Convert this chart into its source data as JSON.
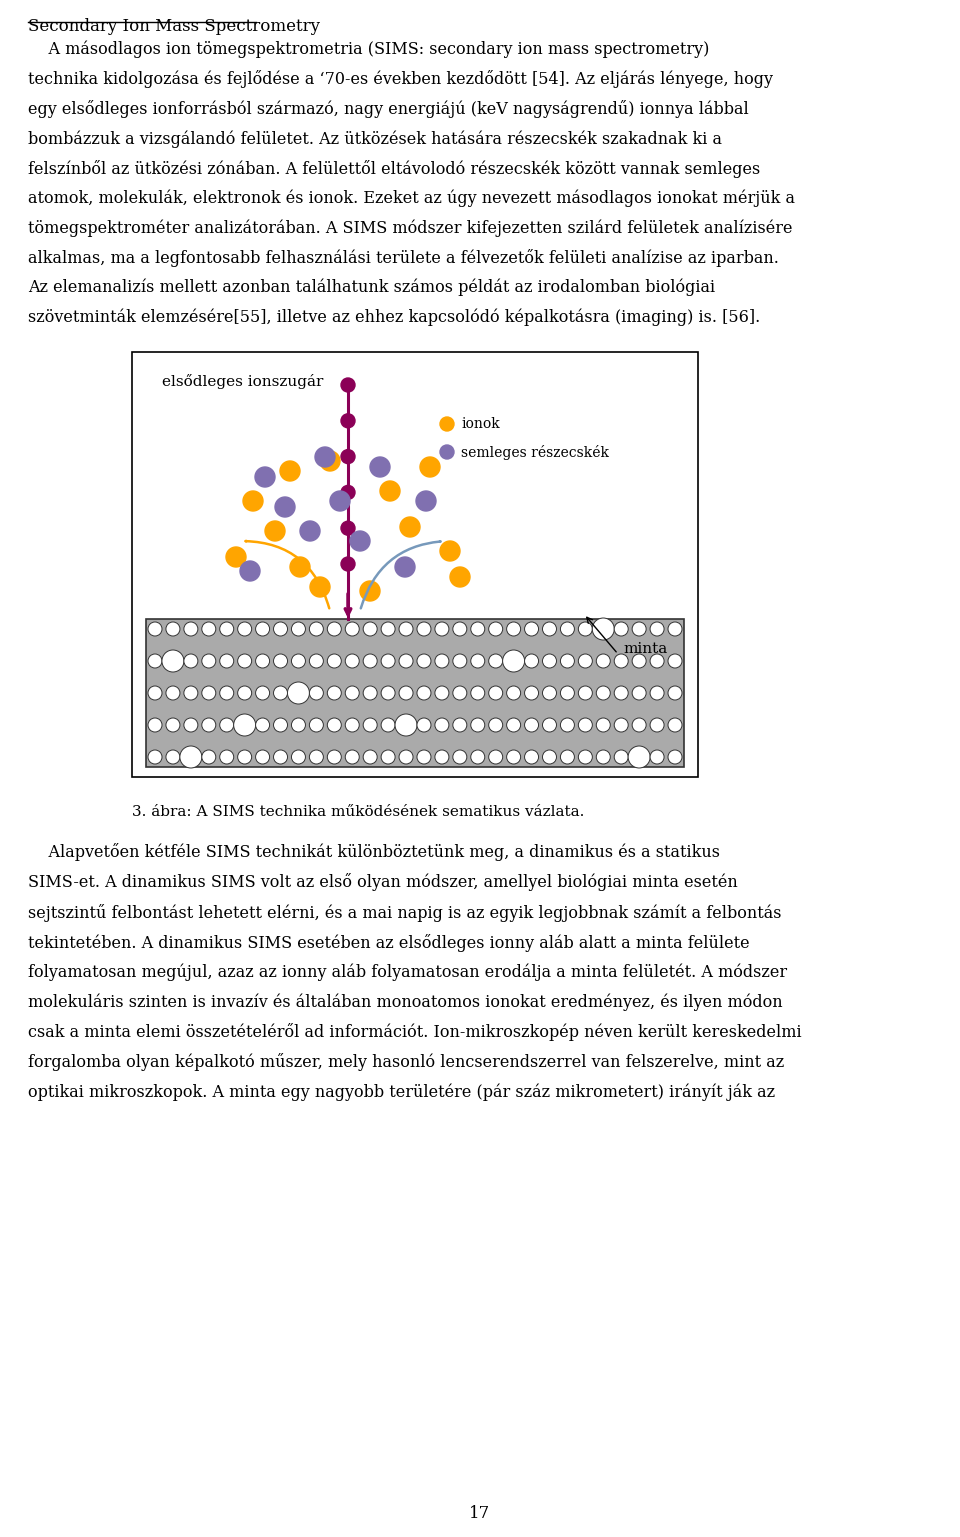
{
  "page_width": 9.6,
  "page_height": 15.37,
  "background_color": "#ffffff",
  "title_text": "Secondary Ion Mass Spectrometry",
  "page_number": "17",
  "diagram": {
    "ion_beam_color": "#8B0057",
    "ion_orange_color": "#FFA500",
    "neutral_purple_color": "#8070B0",
    "arrow_orange_color": "#FFA500",
    "arrow_blue_color": "#7799BB",
    "surface_fill": "#aaaaaa",
    "surface_edge": "#333333",
    "beam_label": "elsődleges ionszugár",
    "legend_ion": "ionok",
    "legend_neutral": "semleges részecskék",
    "sample_label": "minta"
  }
}
